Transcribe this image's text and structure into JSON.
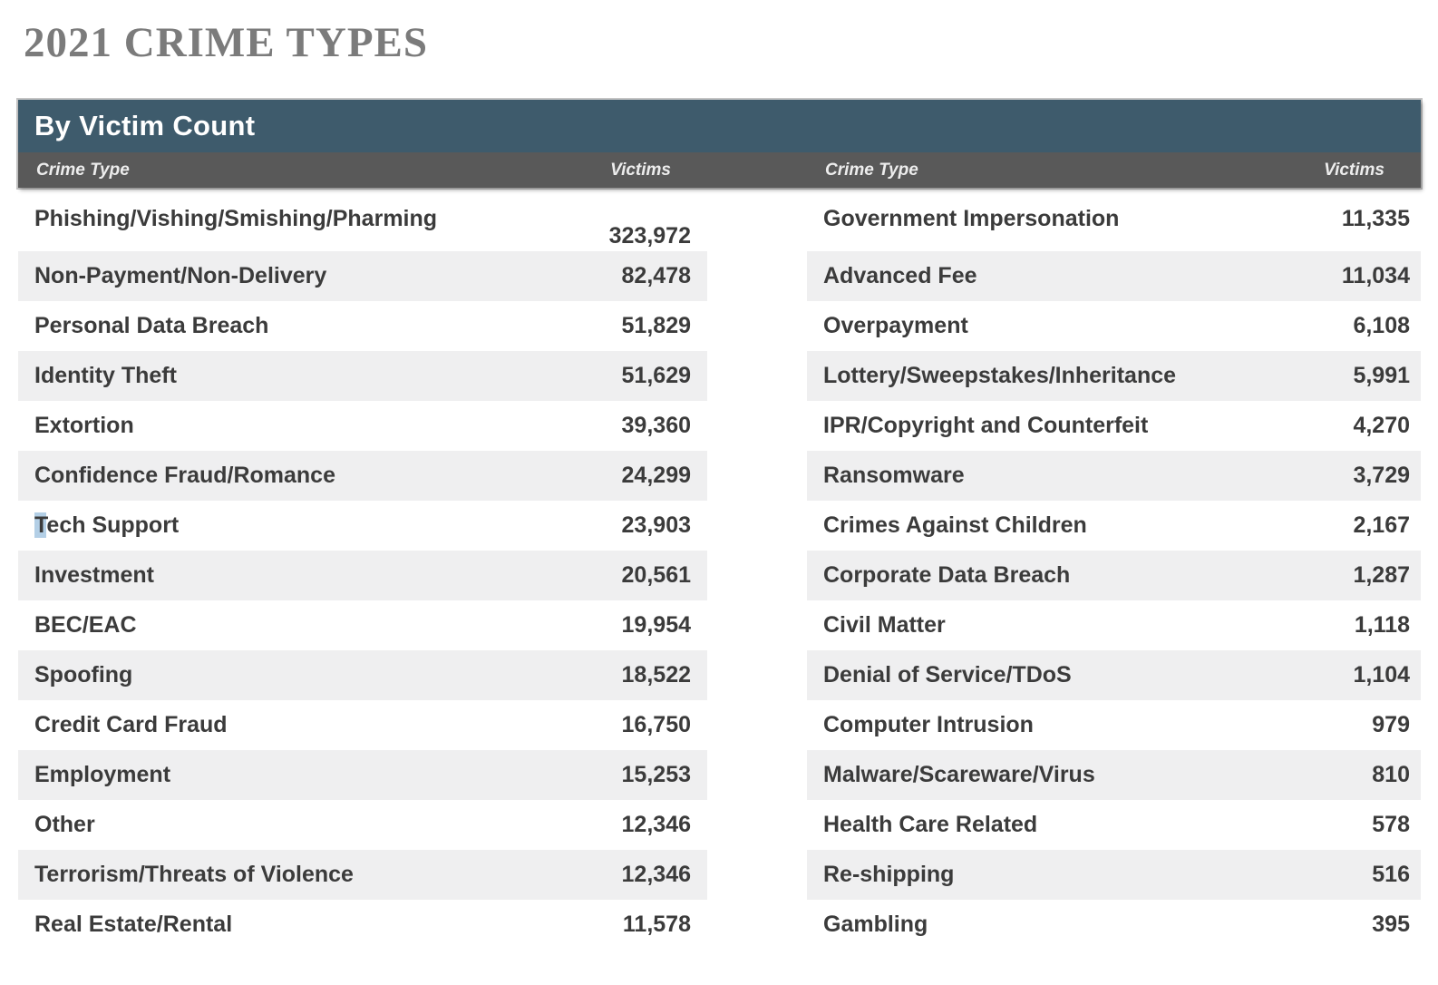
{
  "chart_data": {
    "type": "table",
    "title": "2021 CRIME TYPES",
    "section_header": "By Victim Count",
    "column_headers": {
      "crime_type": "Crime Type",
      "victims": "Victims"
    },
    "left_rows": [
      {
        "label": "Phishing/Vishing/Smishing/Pharming",
        "victims": "323,972"
      },
      {
        "label": "Non-Payment/Non-Delivery",
        "victims": "82,478"
      },
      {
        "label": "Personal Data Breach",
        "victims": "51,829"
      },
      {
        "label": "Identity Theft",
        "victims": "51,629"
      },
      {
        "label": "Extortion",
        "victims": "39,360"
      },
      {
        "label": "Confidence Fraud/Romance",
        "victims": "24,299"
      },
      {
        "label": "Tech Support",
        "victims": "23,903",
        "selection_highlight_chars": 1
      },
      {
        "label": "Investment",
        "victims": "20,561"
      },
      {
        "label": "BEC/EAC",
        "victims": "19,954"
      },
      {
        "label": "Spoofing",
        "victims": "18,522"
      },
      {
        "label": "Credit Card Fraud",
        "victims": "16,750"
      },
      {
        "label": "Employment",
        "victims": "15,253"
      },
      {
        "label": "Other",
        "victims": "12,346"
      },
      {
        "label": "Terrorism/Threats of Violence",
        "victims": "12,346"
      },
      {
        "label": "Real Estate/Rental",
        "victims": "11,578"
      }
    ],
    "right_rows": [
      {
        "label": "Government Impersonation",
        "victims": "11,335"
      },
      {
        "label": "Advanced Fee",
        "victims": "11,034"
      },
      {
        "label": "Overpayment",
        "victims": "6,108"
      },
      {
        "label": "Lottery/Sweepstakes/Inheritance",
        "victims": "5,991"
      },
      {
        "label": "IPR/Copyright and Counterfeit",
        "victims": "4,270"
      },
      {
        "label": "Ransomware",
        "victims": "3,729"
      },
      {
        "label": "Crimes Against Children",
        "victims": "2,167"
      },
      {
        "label": "Corporate Data Breach",
        "victims": "1,287"
      },
      {
        "label": "Civil Matter",
        "victims": "1,118"
      },
      {
        "label": "Denial of Service/TDoS",
        "victims": "1,104"
      },
      {
        "label": "Computer Intrusion",
        "victims": "979"
      },
      {
        "label": "Malware/Scareware/Virus",
        "victims": "810"
      },
      {
        "label": "Health Care Related",
        "victims": "578"
      },
      {
        "label": "Re-shipping",
        "victims": "516"
      },
      {
        "label": "Gambling",
        "victims": "395"
      }
    ]
  },
  "colors": {
    "header_teal": "#3e5b6c",
    "subheader_gray": "#595959",
    "row_stripe": "#efeff0",
    "title_gray": "#7b7b7b",
    "text_dark": "#3b3b3b",
    "selection_highlight_blue": "#b3cfe6"
  }
}
